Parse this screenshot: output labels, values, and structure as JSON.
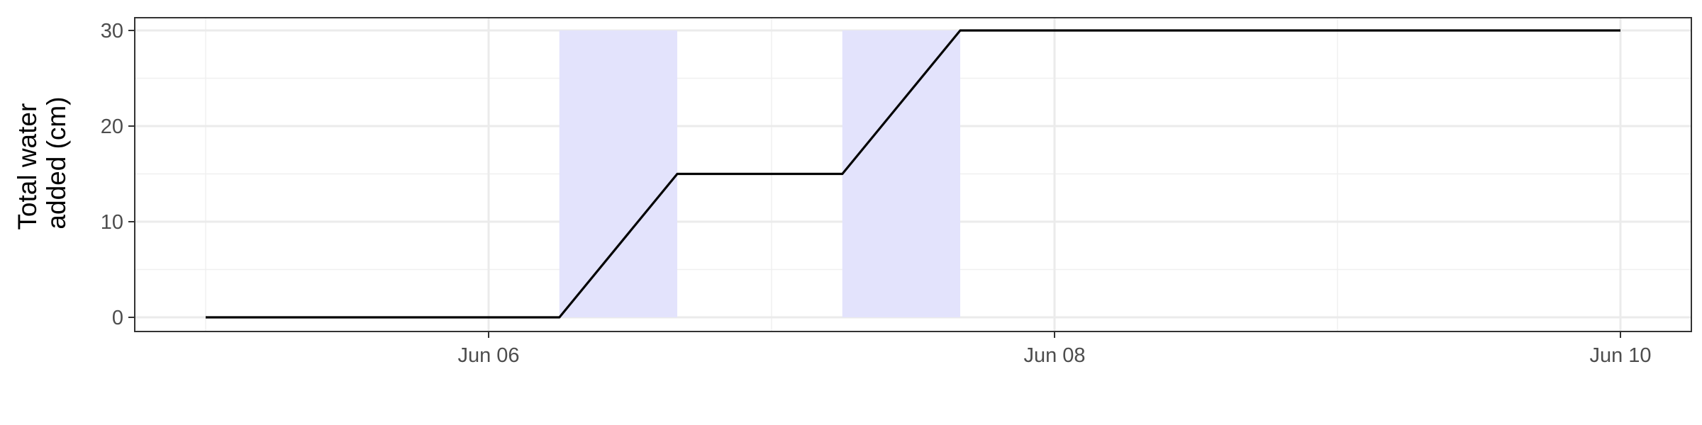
{
  "chart_data": {
    "type": "line",
    "title": "",
    "xlabel": "",
    "ylabel_lines": [
      "Total water",
      "added (cm)"
    ],
    "x_axis": {
      "type": "date",
      "range": [
        "2024-06-05 00:00",
        "2024-06-10 00:00"
      ],
      "ticks": [
        {
          "value": "2024-06-06 00:00",
          "label": "Jun 06"
        },
        {
          "value": "2024-06-08 00:00",
          "label": "Jun 08"
        },
        {
          "value": "2024-06-10 00:00",
          "label": "Jun 10"
        }
      ],
      "minor_ticks": [
        "2024-06-05 00:00",
        "2024-06-07 00:00",
        "2024-06-09 00:00"
      ]
    },
    "y_axis": {
      "range": [
        0,
        30
      ],
      "ticks": [
        0,
        10,
        20,
        30
      ],
      "minor_ticks": [
        5,
        15,
        25
      ]
    },
    "grid": true,
    "shaded_intervals": [
      {
        "start": "2024-06-06 06:00",
        "end": "2024-06-06 16:00",
        "ymin": 0,
        "ymax": 30,
        "color": "#e3e3fc"
      },
      {
        "start": "2024-06-07 06:00",
        "end": "2024-06-07 16:00",
        "ymin": 0,
        "ymax": 30,
        "color": "#e3e3fc"
      }
    ],
    "series": [
      {
        "color": "#000000",
        "points": [
          {
            "x": "2024-06-05 00:00",
            "y": 0
          },
          {
            "x": "2024-06-06 06:00",
            "y": 0
          },
          {
            "x": "2024-06-06 16:00",
            "y": 15
          },
          {
            "x": "2024-06-07 06:00",
            "y": 15
          },
          {
            "x": "2024-06-07 16:00",
            "y": 30
          },
          {
            "x": "2024-06-10 00:00",
            "y": 30
          }
        ]
      }
    ]
  }
}
